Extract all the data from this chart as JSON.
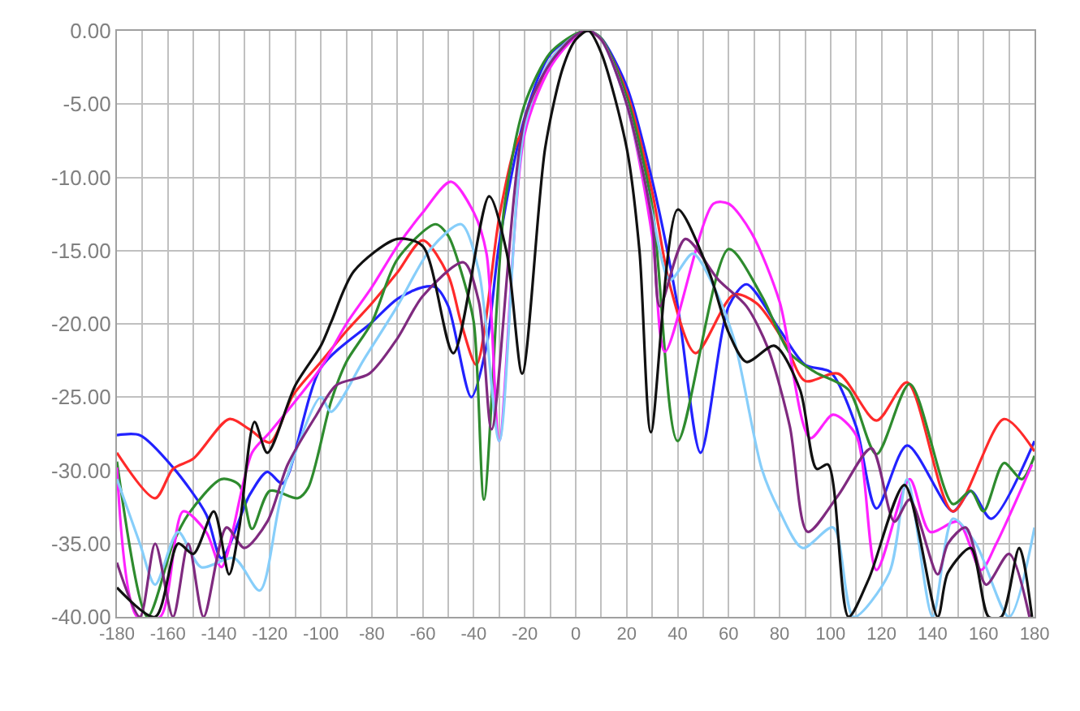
{
  "chart_data": {
    "type": "line",
    "xlim": [
      -180,
      180
    ],
    "ylim": [
      -40,
      0
    ],
    "xticks": [
      -180,
      {
        "value": -170,
        "label": null
      },
      -160,
      {
        "value": -150,
        "label": null
      },
      -140,
      {
        "value": -130,
        "label": null
      },
      -120,
      {
        "value": -110,
        "label": null
      },
      -100,
      {
        "value": -90,
        "label": null
      },
      -80,
      {
        "value": -70,
        "label": null
      },
      -60,
      {
        "value": -50,
        "label": null
      },
      -40,
      {
        "value": -30,
        "label": null
      },
      -20,
      {
        "value": -10,
        "label": null
      },
      0,
      {
        "value": 10,
        "label": null
      },
      20,
      {
        "value": 30,
        "label": null
      },
      40,
      {
        "value": 50,
        "label": null
      },
      60,
      {
        "value": 70,
        "label": null
      },
      80,
      {
        "value": 90,
        "label": null
      },
      100,
      {
        "value": 110,
        "label": null
      },
      120,
      {
        "value": 130,
        "label": null
      },
      140,
      {
        "value": 150,
        "label": null
      },
      160,
      {
        "value": 170,
        "label": null
      },
      180
    ],
    "yticks": [
      {
        "value": 0,
        "label": "0.00"
      },
      {
        "value": -5,
        "label": "-5.00"
      },
      {
        "value": -10,
        "label": "-10.00"
      },
      {
        "value": -15,
        "label": "-15.00"
      },
      {
        "value": -20,
        "label": "-20.00"
      },
      {
        "value": -25,
        "label": "-25.00"
      },
      {
        "value": -30,
        "label": "-30.00"
      },
      {
        "value": -35,
        "label": "-35.00"
      },
      {
        "value": -40,
        "label": "-40.00"
      }
    ],
    "grid": true,
    "marker": "none",
    "line_style": "solid",
    "series": [
      {
        "color": "#2222ff",
        "x": [
          -180,
          -171,
          -158,
          -145,
          -139,
          -128,
          -121,
          -115,
          -100,
          -80,
          -70,
          -60,
          -55,
          -50,
          -41,
          -35,
          -30,
          -20,
          -10,
          0,
          5,
          10,
          20,
          30,
          40,
          49,
          60,
          67,
          80,
          90,
          100,
          110,
          118,
          130,
          148,
          155,
          163,
          180
        ],
        "values": [
          -27.6,
          -27.6,
          -29.8,
          -33,
          -36,
          -31.7,
          -30.1,
          -30.9,
          -23,
          -19.9,
          -18.3,
          -17.5,
          -17.5,
          -18.8,
          -25,
          -21.5,
          -14.5,
          -5.9,
          -1.6,
          -0.3,
          0,
          -0.5,
          -3.8,
          -10.2,
          -18.8,
          -28.8,
          -18.8,
          -17.3,
          -20.4,
          -22.8,
          -23.3,
          -27,
          -32.6,
          -28.3,
          -32.8,
          -31.4,
          -33.3,
          -28
        ]
      },
      {
        "color": "#ff2a2a",
        "x": [
          -180,
          -165,
          -158,
          -150,
          -136,
          -128,
          -120,
          -111,
          -100,
          -90,
          -80,
          -70,
          -60,
          -50,
          -45,
          -39,
          -30,
          -24,
          -20,
          -10,
          0,
          5,
          10,
          20,
          30,
          37,
          47,
          62,
          71,
          82,
          90,
          103,
          118,
          130,
          148,
          168,
          180
        ],
        "values": [
          -28.8,
          -31.9,
          -29.9,
          -29.2,
          -26.5,
          -27.2,
          -28.1,
          -24.9,
          -22.6,
          -20.5,
          -18.6,
          -16.5,
          -14.3,
          -16.7,
          -19.9,
          -22.8,
          -12.7,
          -8,
          -6.5,
          -2,
          -0.3,
          0,
          -0.6,
          -4.2,
          -11,
          -17.4,
          -22,
          -18,
          -18.6,
          -21.3,
          -23.9,
          -23.4,
          -26.6,
          -24,
          -32.8,
          -26.5,
          -28.7
        ]
      },
      {
        "color": "#2e8b2e",
        "x": [
          -180,
          -168,
          -158,
          -152,
          -139,
          -132,
          -127,
          -120,
          -109,
          -105,
          -96,
          -90,
          -80,
          -70,
          -55,
          -50,
          -45,
          -40,
          -36,
          -28,
          -20,
          -10,
          0,
          5,
          10,
          20,
          30,
          40,
          60,
          73,
          84,
          94,
          107,
          118,
          131,
          148,
          155,
          160,
          168,
          175,
          180
        ],
        "values": [
          -29.4,
          -40,
          -35,
          -33,
          -30.6,
          -31,
          -34,
          -31.4,
          -31.9,
          -31.2,
          -25.3,
          -22.6,
          -19.9,
          -15.6,
          -13.2,
          -14,
          -16.4,
          -19.9,
          -32,
          -12,
          -5,
          -1.5,
          -0.2,
          0,
          -0.5,
          -4.5,
          -12,
          -28,
          -14.9,
          -18.1,
          -22,
          -23.3,
          -24.5,
          -28.9,
          -24.1,
          -32.3,
          -31.4,
          -32.8,
          -29.5,
          -30.6,
          -29
        ]
      },
      {
        "color": "#ff22ff",
        "x": [
          -180,
          -172,
          -163,
          -154,
          -145,
          -139,
          -127,
          -120,
          -100,
          -90,
          -80,
          -70,
          -60,
          -49,
          -40,
          -35,
          -30,
          -20,
          -10,
          0,
          5,
          10,
          20,
          30,
          35,
          54,
          60,
          69,
          80,
          92,
          101,
          110,
          118,
          131,
          139,
          150,
          159,
          165,
          179
        ],
        "values": [
          -29.8,
          -40,
          -40,
          -32.8,
          -34.2,
          -36.6,
          -28.8,
          -27.4,
          -23,
          -20,
          -17.5,
          -14.7,
          -12.4,
          -10.3,
          -12.4,
          -15.2,
          -28,
          -7,
          -2.5,
          -0.4,
          0,
          -0.6,
          -5,
          -14,
          -21.9,
          -11.8,
          -11.8,
          -13.8,
          -18.5,
          -27.8,
          -26.2,
          -27.6,
          -36.8,
          -30.6,
          -34.2,
          -33.5,
          -36.8,
          -35,
          -29.6
        ]
      },
      {
        "color": "#87cefa",
        "x": [
          -180,
          -171,
          -165,
          -156,
          -147,
          -134,
          -124,
          -115,
          -100,
          -96,
          -83,
          -70,
          -57,
          -45,
          -38,
          -30,
          -20,
          -10,
          0,
          5,
          10,
          20,
          30,
          37,
          46,
          54,
          62,
          73,
          80,
          89,
          101,
          109,
          123,
          130,
          140,
          148,
          157,
          170,
          180
        ],
        "values": [
          -30.6,
          -35,
          -37.8,
          -34.2,
          -36.6,
          -36,
          -38.2,
          -31.4,
          -25,
          -26,
          -22.4,
          -18.8,
          -14.9,
          -13.2,
          -16.4,
          -28,
          -6.5,
          -2,
          -0.3,
          0,
          -0.6,
          -5,
          -12.5,
          -17,
          -15.2,
          -17.4,
          -21,
          -29.9,
          -32.8,
          -35.3,
          -33.9,
          -40,
          -37,
          -30.6,
          -40,
          -33.3,
          -35,
          -40,
          -33.9
        ]
      },
      {
        "color": "#7f2a7f",
        "x": [
          -180,
          -171,
          -165,
          -158,
          -152,
          -146,
          -137,
          -130,
          -121,
          -113,
          -102,
          -94,
          -81,
          -70,
          -60,
          -44,
          -38,
          -33,
          -20,
          -10,
          0,
          5,
          10,
          20,
          30,
          33,
          43,
          56,
          67,
          75.5,
          84,
          91,
          103,
          116,
          125,
          131,
          142,
          146,
          153,
          161,
          170,
          178
        ],
        "values": [
          -36.3,
          -40,
          -35,
          -40,
          -35,
          -40,
          -33.9,
          -35.3,
          -33.5,
          -29.6,
          -26.3,
          -24.2,
          -23.4,
          -21,
          -18.1,
          -15.8,
          -18.5,
          -27.2,
          -6,
          -2.2,
          -0.3,
          0,
          -0.6,
          -5,
          -13,
          -18.8,
          -14.2,
          -17,
          -18.8,
          -21.7,
          -27,
          -34.2,
          -31.7,
          -28.5,
          -33.5,
          -32,
          -37.1,
          -35,
          -33.9,
          -37.8,
          -35.7,
          -40
        ]
      },
      {
        "color": "#111111",
        "x": [
          -180,
          -165,
          -156,
          -150,
          -142,
          -136,
          -132,
          -126,
          -121,
          -110,
          -100,
          -96,
          -87,
          -70,
          -60,
          -48,
          -34,
          -27,
          -21,
          -12,
          -5,
          0,
          5,
          10,
          20,
          25,
          29.5,
          40,
          52,
          60,
          67,
          78,
          88,
          94.5,
          99,
          107,
          115,
          129,
          142,
          146,
          155,
          162,
          167,
          174,
          179
        ],
        "values": [
          -38,
          -40,
          -35,
          -35.7,
          -32.8,
          -37.1,
          -33.9,
          -26.7,
          -28.8,
          -24.2,
          -21.5,
          -19.9,
          -16.4,
          -14.2,
          -14.7,
          -22,
          -11.3,
          -15.2,
          -23.4,
          -8,
          -2.5,
          -0.6,
          0,
          -1.5,
          -8,
          -15,
          -27.4,
          -12.2,
          -16.3,
          -20.6,
          -22.6,
          -21.5,
          -24.5,
          -29.9,
          -29.6,
          -40,
          -37.4,
          -31,
          -40,
          -37,
          -35.3,
          -40,
          -40,
          -35.3,
          -40
        ]
      }
    ]
  }
}
